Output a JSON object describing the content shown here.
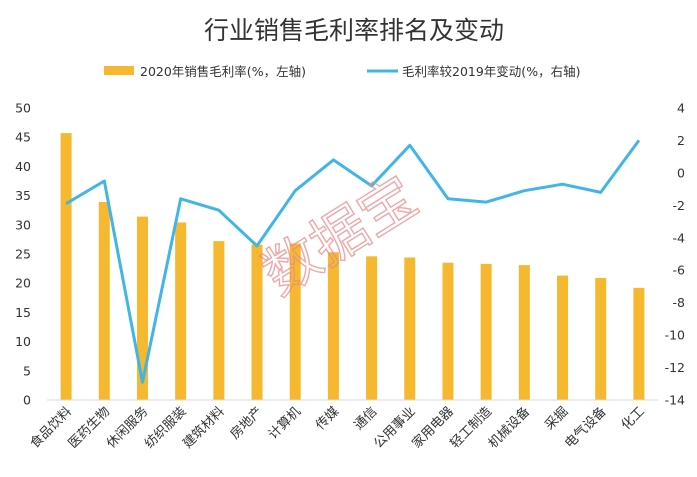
{
  "chart_data": {
    "type": "bar+line",
    "title": "行业销售毛利率排名及变动",
    "categories": [
      "食品饮料",
      "医药生物",
      "休闲服务",
      "纺织服装",
      "建筑材料",
      "房地产",
      "计算机",
      "传媒",
      "通信",
      "公用事业",
      "家用电器",
      "轻工制造",
      "机械设备",
      "采掘",
      "电气设备",
      "化工"
    ],
    "series": [
      {
        "name": "2020年销售毛利率(%，左轴)",
        "type": "bar",
        "axis": "left",
        "color": "#f5b82e",
        "values": [
          45.7,
          33.9,
          31.4,
          30.4,
          27.2,
          26.6,
          26.8,
          25.3,
          24.6,
          24.4,
          23.5,
          23.3,
          23.1,
          21.3,
          20.9,
          19.2
        ]
      },
      {
        "name": "毛利率较2019年变动(%，右轴)",
        "type": "line",
        "axis": "right",
        "color": "#41b6e6",
        "values": [
          -1.9,
          -0.5,
          -12.9,
          -1.6,
          -2.3,
          -4.5,
          -1.1,
          0.8,
          -0.8,
          1.7,
          -1.6,
          -1.8,
          -1.1,
          -0.7,
          -1.2,
          2.0
        ]
      }
    ],
    "yleft": {
      "min": 0,
      "max": 50,
      "step": 5,
      "ticks": [
        "0",
        "5",
        "10",
        "15",
        "20",
        "25",
        "30",
        "35",
        "40",
        "45",
        "50"
      ]
    },
    "yright": {
      "min": -14,
      "max": 4,
      "step": 2,
      "ticks": [
        "-14",
        "-12",
        "-10",
        "-8",
        "-6",
        "-4",
        "-2",
        "0",
        "2",
        "4"
      ]
    },
    "legend_position": "top",
    "grid": false
  },
  "watermark": "数据宝"
}
